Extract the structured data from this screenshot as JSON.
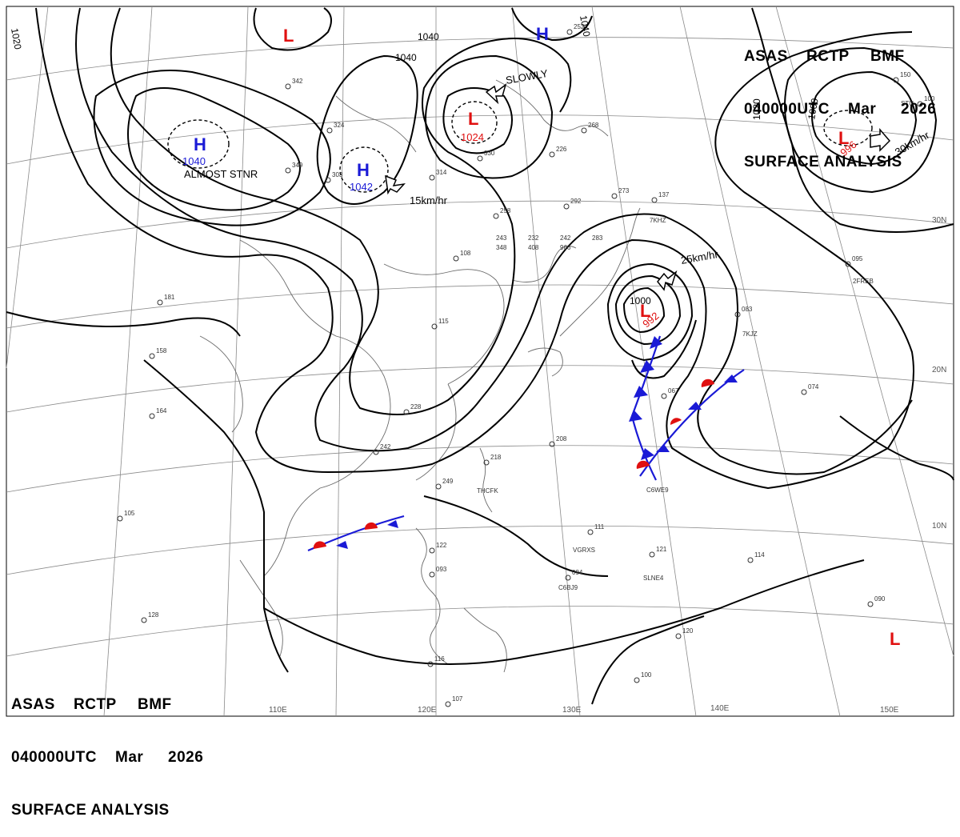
{
  "header": {
    "line1": [
      "ASAS",
      "RCTP",
      "BMF"
    ],
    "line2": [
      "040000UTC",
      "Mar",
      "2026"
    ],
    "line3": "SURFACE ANALYSIS"
  },
  "grid": {
    "lon_labels": [
      "110E",
      "120E",
      "130E",
      "140E",
      "150E"
    ],
    "lat_labels": [
      "30N",
      "20N",
      "10N"
    ]
  },
  "isobar_labels": [
    "1020",
    "1040",
    "1040",
    "1040",
    "1000",
    "1020",
    "1000"
  ],
  "pressure_systems": [
    {
      "type": "H",
      "pressure": "1040",
      "note": "ALMOST STNR"
    },
    {
      "type": "H",
      "pressure": "1042",
      "motion": "15km/hr"
    },
    {
      "type": "H"
    },
    {
      "type": "L"
    },
    {
      "type": "L",
      "pressure": "1024",
      "motion": "SLOWLY"
    },
    {
      "type": "L",
      "pressure": "996",
      "motion": "30km/hr"
    },
    {
      "type": "L",
      "pressure": "992",
      "motion": "25km/hr"
    },
    {
      "type": "L"
    }
  ],
  "station_samples": [
    "342",
    "324",
    "349",
    "303",
    "314",
    "330",
    "292",
    "273",
    "226",
    "268",
    "258",
    "108",
    "115",
    "228",
    "242",
    "249",
    "218",
    "208",
    "181",
    "158",
    "164",
    "105",
    "128",
    "122",
    "093",
    "116",
    "107",
    "094",
    "111",
    "121",
    "114",
    "120",
    "100",
    "090",
    "074",
    "083",
    "067",
    "095",
    "137",
    "150",
    "100",
    "252",
    "243",
    "232",
    "242",
    "283",
    "348",
    "408",
    "966"
  ],
  "ship_ids": [
    "7KHZ",
    "7KJZ",
    "2FREB",
    "C6WE9",
    "THCFK",
    "VGRXS",
    "C6BJ9",
    "SLNE4",
    "STU"
  ],
  "colors": {
    "high": "#1a1ad6",
    "low": "#e01010",
    "isobar": "#000000",
    "grid": "#8a8a8a",
    "coast": "#6a6a6a"
  }
}
